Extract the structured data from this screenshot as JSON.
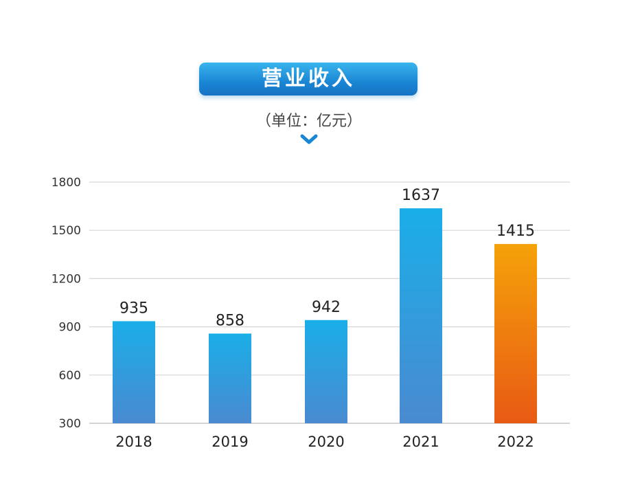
{
  "chart_data": {
    "type": "bar",
    "title": "营业收入",
    "subtitle": "（单位：亿元）",
    "categories": [
      "2018",
      "2019",
      "2020",
      "2021",
      "2022"
    ],
    "values": [
      935,
      858,
      942,
      1637,
      1415
    ],
    "ylim": [
      300,
      1800
    ],
    "yticks": [
      300,
      600,
      900,
      1200,
      1500,
      1800
    ],
    "grid": true,
    "colors": {
      "default_top": "#1aaee8",
      "default_bottom": "#4a8ad0",
      "highlight_top": "#f5a20a",
      "highlight_bottom": "#e85a14",
      "title_bg": "#1a86d4"
    },
    "highlight_index": 4
  }
}
